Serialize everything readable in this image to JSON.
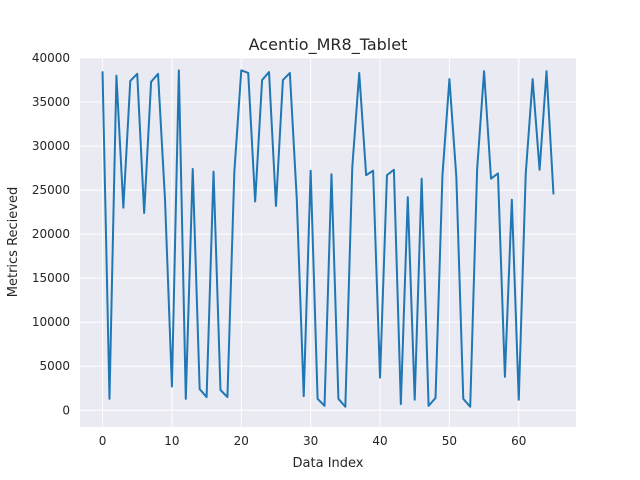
{
  "chart_data": {
    "type": "line",
    "title": "Acentio_MR8_Tablet",
    "xlabel": "Data Index",
    "ylabel": "Metrics Recieved",
    "xlim": [
      -3.25,
      68.25
    ],
    "ylim": [
      -1900,
      40000
    ],
    "x_ticks": [
      0,
      10,
      20,
      30,
      40,
      50,
      60
    ],
    "x_tick_labels": [
      "0",
      "10",
      "20",
      "30",
      "40",
      "50",
      "60"
    ],
    "y_ticks": [
      0,
      5000,
      10000,
      15000,
      20000,
      25000,
      30000,
      35000,
      40000
    ],
    "y_tick_labels": [
      "0",
      "5000",
      "10000",
      "15000",
      "20000",
      "25000",
      "30000",
      "35000",
      "40000"
    ],
    "grid": true,
    "background_color": "#eaeaf2",
    "series": [
      {
        "color": "#1f77b4",
        "x": [
          0,
          1,
          2,
          3,
          4,
          5,
          6,
          7,
          8,
          9,
          10,
          11,
          12,
          13,
          14,
          15,
          16,
          17,
          18,
          19,
          20,
          21,
          22,
          23,
          24,
          25,
          26,
          27,
          28,
          29,
          30,
          31,
          32,
          33,
          34,
          35,
          36,
          37,
          38,
          39,
          40,
          41,
          42,
          43,
          44,
          45,
          46,
          47,
          48,
          49,
          50,
          51,
          52,
          53,
          54,
          55,
          56,
          57,
          58,
          59,
          60,
          61,
          62,
          63,
          64,
          65
        ],
        "values": [
          38400,
          1300,
          38000,
          23000,
          37400,
          38200,
          22400,
          37300,
          38200,
          24000,
          2700,
          38600,
          1300,
          27400,
          2400,
          1500,
          27100,
          2300,
          1500,
          27100,
          38600,
          38300,
          23700,
          37500,
          38400,
          23200,
          37500,
          38300,
          24000,
          1600,
          27200,
          1300,
          500,
          26800,
          1300,
          400,
          27600,
          38300,
          26700,
          27200,
          3700,
          26700,
          27300,
          700,
          24200,
          1200,
          26300,
          500,
          1400,
          26700,
          37600,
          26500,
          1300,
          400,
          27400,
          38500,
          26300,
          26900,
          3800,
          23900,
          1200,
          26800,
          37600,
          27300,
          38500,
          24600
        ]
      }
    ]
  }
}
